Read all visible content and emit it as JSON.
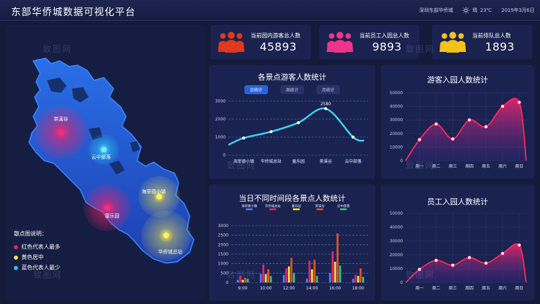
{
  "header": {
    "title": "东部华侨城数据可视化平台",
    "location": "深圳东部华侨城",
    "weather": "晴",
    "temperature": "23℃",
    "date": "2019年3月6日",
    "weather_icon": "sun-icon"
  },
  "kpis": [
    {
      "label": "当前园内游客总人数",
      "value": "45893",
      "color": "#e0391e"
    },
    {
      "label": "当前员工入园总人数",
      "value": "9893",
      "color": "#f0348a"
    },
    {
      "label": "当前排队总人数",
      "value": "1893",
      "color": "#f4c21a"
    }
  ],
  "map": {
    "spots": [
      {
        "name": "茶溪谷",
        "color": "#e8246b"
      },
      {
        "name": "云中部落",
        "color": "#29c6f0"
      },
      {
        "name": "海菲德小镇",
        "color": "#f5e642"
      },
      {
        "name": "童乐园",
        "color": "#e8246b"
      },
      {
        "name": "华侨城总站",
        "color": "#f5e642"
      }
    ],
    "legend": {
      "title": "散点图说明：",
      "items": [
        {
          "label": "红色代表人最多",
          "color": "#e8246b"
        },
        {
          "label": "黄色居中",
          "color": "#f5e642"
        },
        {
          "label": "蓝色代表人最少",
          "color": "#29c6f0"
        }
      ]
    }
  },
  "watermark": "致图网",
  "chart_data": [
    {
      "type": "line",
      "title": "各景点游客人数统计",
      "tabs": [
        "日统计",
        "周统计",
        "月统计"
      ],
      "active_tab": "日统计",
      "categories": [
        "海菲德小镇",
        "华侨城总站",
        "童乐园",
        "茶溪谷",
        "云中部落"
      ],
      "values": [
        950,
        1300,
        1800,
        2580,
        1000
      ],
      "peak_label": "2580",
      "ylim": [
        0,
        3000
      ],
      "yticks": [
        "0",
        "1000",
        "2000",
        "3000"
      ],
      "grid": true,
      "color": "#3fd4f0"
    },
    {
      "type": "area",
      "title": "游客入园人数统计",
      "categories": [
        "周一",
        "周二",
        "周三",
        "周四",
        "周五",
        "周六",
        "周日"
      ],
      "values": [
        15500,
        27000,
        16000,
        30000,
        25000,
        40000,
        43000
      ],
      "ylim": [
        0,
        50000
      ],
      "yticks": [
        "0",
        "10000",
        "20000",
        "30000",
        "40000",
        "50000"
      ],
      "grid": true,
      "color": "#e8246b"
    },
    {
      "type": "bar",
      "title": "当日不同时间段各景点人数统计",
      "categories": [
        "9:00",
        "10:00",
        "12:00",
        "14:00",
        "16:00",
        "18:00"
      ],
      "series": [
        {
          "name": "海菲德小镇",
          "color": "#5a7ef0",
          "values": [
            150,
            450,
            400,
            200,
            500,
            200
          ]
        },
        {
          "name": "华侨城总站",
          "color": "#e8246b",
          "values": [
            350,
            950,
            750,
            1150,
            1650,
            400
          ]
        },
        {
          "name": "童乐园",
          "color": "#f5e642",
          "values": [
            150,
            450,
            850,
            700,
            1100,
            350
          ]
        },
        {
          "name": "茶溪谷",
          "color": "#e8541e",
          "values": [
            250,
            700,
            1300,
            1200,
            2600,
            750
          ]
        },
        {
          "name": "云中部落",
          "color": "#3fc47a",
          "values": [
            200,
            350,
            500,
            350,
            900,
            300
          ]
        }
      ],
      "ylim": [
        0,
        3000
      ],
      "yticks": [
        "0",
        "500",
        "1000",
        "1500",
        "2000",
        "2500",
        "3000"
      ],
      "grid": true
    },
    {
      "type": "area",
      "title": "员工入园人数统计",
      "categories": [
        "周一",
        "周二",
        "周三",
        "周四",
        "周五",
        "周六",
        "周日"
      ],
      "values": [
        9500,
        16000,
        12500,
        18000,
        14000,
        21000,
        27000
      ],
      "ylim": [
        0,
        50000
      ],
      "yticks": [
        "0",
        "10000",
        "20000",
        "30000",
        "40000",
        "50000"
      ],
      "grid": true,
      "color": "#e8246b"
    }
  ]
}
